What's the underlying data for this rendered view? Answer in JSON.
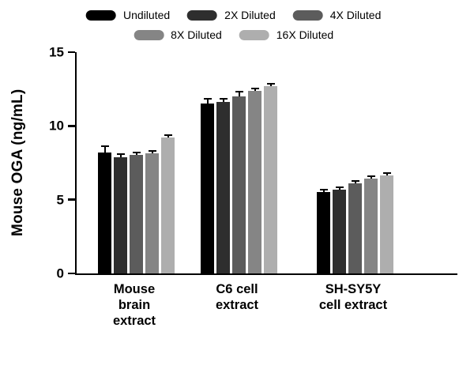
{
  "chart_data": {
    "type": "bar",
    "title": "",
    "xlabel": "",
    "ylabel": "Mouse OGA (ng/mL)",
    "ylim": [
      0,
      15
    ],
    "yticks": [
      0,
      5,
      10,
      15
    ],
    "grid": false,
    "legend_position": "top",
    "categories": [
      "Mouse brain extract",
      "C6 cell extract",
      "SH-SY5Y cell extract"
    ],
    "category_lines": [
      [
        "Mouse",
        "brain",
        "extract"
      ],
      [
        "C6 cell",
        "extract"
      ],
      [
        "SH-SY5Y",
        "cell extract"
      ]
    ],
    "series": [
      {
        "name": "Undiluted",
        "color": "#000000",
        "values": [
          8.2,
          11.5,
          5.5
        ],
        "errors": [
          0.35,
          0.3,
          0.1
        ]
      },
      {
        "name": "2X Diluted",
        "color": "#2e2e2e",
        "values": [
          7.9,
          11.6,
          5.7
        ],
        "errors": [
          0.15,
          0.2,
          0.1
        ]
      },
      {
        "name": "4X Diluted",
        "color": "#5c5c5c",
        "values": [
          8.05,
          12.0,
          6.1
        ],
        "errors": [
          0.1,
          0.25,
          0.1
        ]
      },
      {
        "name": "8X Diluted",
        "color": "#858585",
        "values": [
          8.15,
          12.4,
          6.45
        ],
        "errors": [
          0.1,
          0.1,
          0.1
        ]
      },
      {
        "name": "16X Diluted",
        "color": "#aeaeae",
        "values": [
          9.2,
          12.7,
          6.65
        ],
        "errors": [
          0.12,
          0.1,
          0.08
        ]
      }
    ]
  }
}
